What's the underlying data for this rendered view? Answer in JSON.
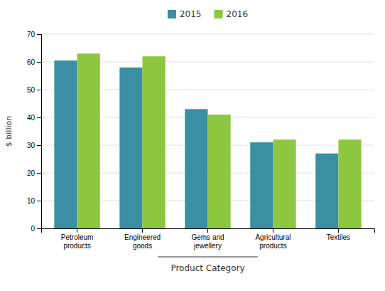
{
  "chart_data": {
    "type": "bar",
    "categories": [
      "Petroleum\nproducts",
      "Engineered\ngoods",
      "Gems and\njewellery",
      "Agricultural\nproducts",
      "Textiles"
    ],
    "series": [
      {
        "name": "2015",
        "color": "#3a8fa3",
        "values": [
          60.5,
          58,
          43,
          31,
          27
        ]
      },
      {
        "name": "2016",
        "color": "#8dc63f",
        "values": [
          63,
          62,
          41,
          32,
          32
        ]
      }
    ],
    "ylabel": "$ billion",
    "xlabel": "Product Category",
    "ylim": [
      0,
      70
    ],
    "yticks": [
      0,
      10,
      20,
      30,
      40,
      50,
      60,
      70
    ],
    "grid": true,
    "legend": "top"
  }
}
